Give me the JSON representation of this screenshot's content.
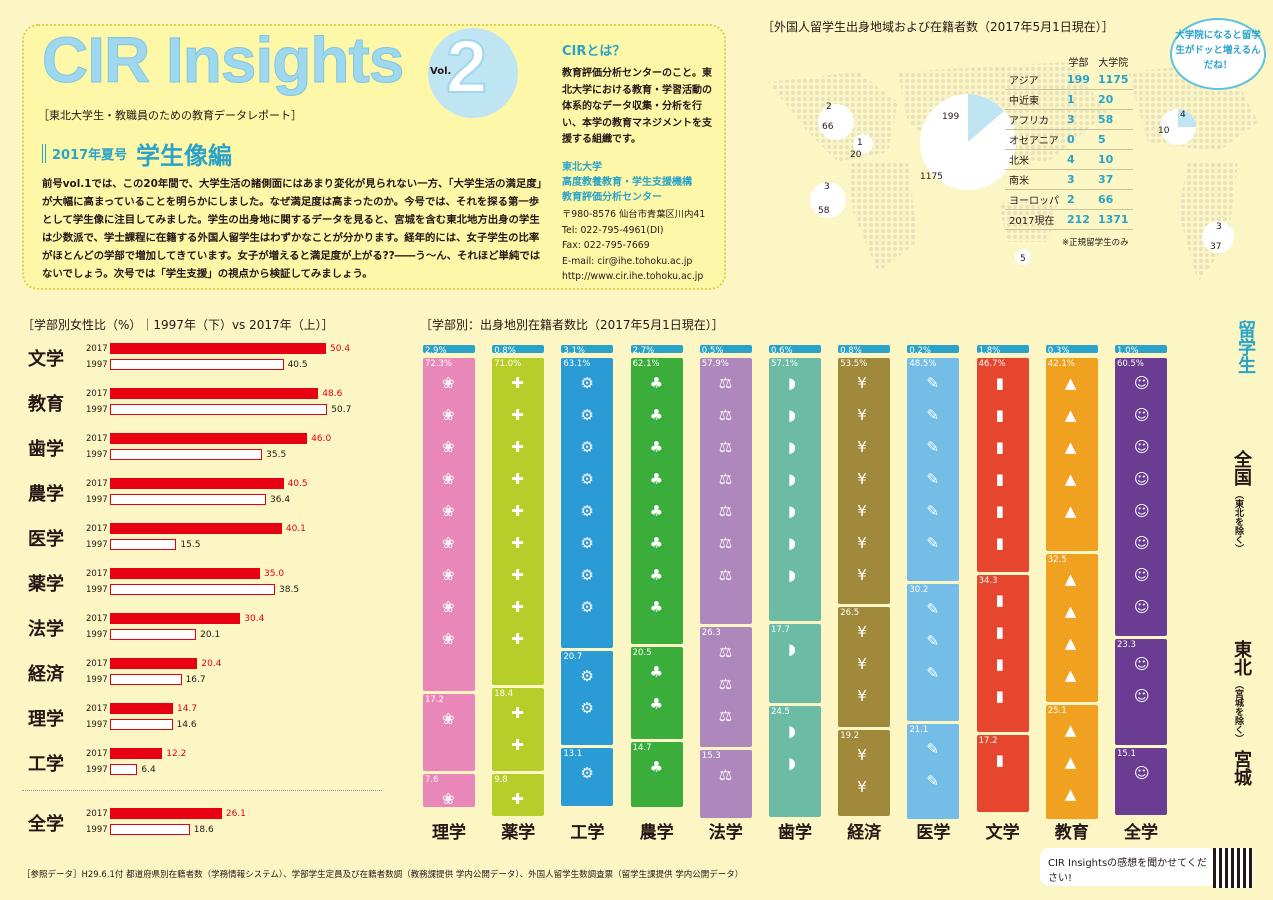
{
  "header": {
    "logo_text": "CIR Insights",
    "vol_label": "Vol.",
    "vol_number": "2",
    "subtitle": "［東北大学生・教職員のための教育データレポート］",
    "season": "2017年夏号",
    "season_title": "学生像編",
    "intro": "前号vol.1では、この20年間で、大学生活の諸側面にはあまり変化が見られない一方、「大学生活の満足度」が大幅に高まっていることを明らかにしました。なぜ満足度は高まったのか。今号では、それを探る第一歩として学生像に注目してみました。学生の出身地に関するデータを見ると、宮城を含む東北地方出身の学生は少数派で、学士課程に在籍する外国人留学生はわずかなことが分かります。経年的には、女子学生の比率がほとんどの学部で増加してきています。女子が増えると満足度が上がる??――う〜ん、それほど単純ではないでしょう。次号では「学生支援」の視点から検証してみましょう。"
  },
  "cir": {
    "title": "CIRとは？",
    "desc": "教育評価分析センターのこと。東北大学における教育・学習活動の体系的なデータ収集・分析を行い、本学の教育マネジメントを支援する組織です。",
    "org_line1": "東北大学",
    "org_line2": "高度教養教育・学生支援機構",
    "org_line3": "教育評価分析センター",
    "addr1": "〒980-8576 仙台市青葉区川内41",
    "addr2": "Tel: 022-795-4961(DI)",
    "addr3": "Fax: 022-795-7669",
    "addr4": "E-mail: cir@ihe.tohoku.ac.jp",
    "addr5": "http://www.cir.ihe.tohoku.ac.jp"
  },
  "map": {
    "title": "［外国人留学生出身地域および在籍者数（2017年5月1日現在）］",
    "bubble": "大学院になると留学生がドッと増えるんだね！",
    "col_gakubu": "学部",
    "col_daigakuin": "大学院",
    "rows": [
      {
        "region": "アジア",
        "gakubu": "199",
        "daigakuin": "1175"
      },
      {
        "region": "中近東",
        "gakubu": "1",
        "daigakuin": "20"
      },
      {
        "region": "アフリカ",
        "gakubu": "3",
        "daigakuin": "58"
      },
      {
        "region": "オセアニア",
        "gakubu": "0",
        "daigakuin": "5"
      },
      {
        "region": "北米",
        "gakubu": "4",
        "daigakuin": "10"
      },
      {
        "region": "南米",
        "gakubu": "3",
        "daigakuin": "37"
      },
      {
        "region": "ヨーロッパ",
        "gakubu": "2",
        "daigakuin": "66"
      },
      {
        "region": "2017現在",
        "gakubu": "212",
        "daigakuin": "1371"
      }
    ],
    "note": "※正規留学生のみ",
    "labels": {
      "eu_g": "2",
      "eu_d": "66",
      "me_g": "1",
      "me_d": "20",
      "af_g": "3",
      "af_d": "58",
      "as_g": "199",
      "as_d": "1175",
      "oc_d": "5",
      "na_g": "4",
      "na_d": "10",
      "sa_g": "3",
      "sa_d": "37"
    }
  },
  "left_chart": {
    "title": "［学部別女性比（%）｜1997年（下）vs 2017年（上）］",
    "y2017": "2017",
    "y1997": "1997"
  },
  "right_chart": {
    "title": "［学部別：出身地別在籍者数比（2017年5月1日現在）］",
    "ryugaku": "留学生",
    "zenkoku": "全国",
    "zenkoku_sub": "（東北を除く）",
    "tohoku": "東北",
    "tohoku_sub": "（宮城を除く）",
    "miyagi": "宮城"
  },
  "chart_data": [
    {
      "type": "bar",
      "title": "学部別女性比（%）｜1997年（下）vs 2017年（上）",
      "categories": [
        "文学",
        "教育",
        "歯学",
        "農学",
        "医学",
        "薬学",
        "法学",
        "経済",
        "理学",
        "工学",
        "全学"
      ],
      "series": [
        {
          "name": "2017",
          "values": [
            50.4,
            48.6,
            46.0,
            40.5,
            40.1,
            35.0,
            30.4,
            20.4,
            14.7,
            12.2,
            26.1
          ]
        },
        {
          "name": "1997",
          "values": [
            40.5,
            50.7,
            35.5,
            36.4,
            15.5,
            38.5,
            20.1,
            16.7,
            14.6,
            6.4,
            18.6
          ]
        }
      ],
      "xlim": [
        0,
        55
      ],
      "colors": {
        "2017": "#e60012",
        "1997": "#ffffff"
      }
    },
    {
      "type": "bar",
      "title": "学部別：出身地別在籍者数比（2017年5月1日現在）",
      "categories": [
        "理学",
        "薬学",
        "工学",
        "農学",
        "法学",
        "歯学",
        "経済",
        "医学",
        "文学",
        "教育",
        "全学"
      ],
      "series": [
        {
          "name": "留学生",
          "values": [
            2.9,
            0.8,
            3.1,
            2.7,
            0.5,
            0.6,
            0.8,
            0.2,
            1.8,
            0.3,
            1.0
          ]
        },
        {
          "name": "全国（東北を除く）",
          "values": [
            72.3,
            71.0,
            63.1,
            62.1,
            57.9,
            57.1,
            53.5,
            48.5,
            46.7,
            42.1,
            60.5
          ]
        },
        {
          "name": "東北（宮城を除く）",
          "values": [
            17.2,
            18.4,
            20.7,
            20.5,
            26.3,
            17.7,
            26.5,
            30.2,
            34.3,
            32.5,
            23.3
          ]
        },
        {
          "name": "宮城",
          "values": [
            7.6,
            9.8,
            13.1,
            14.7,
            15.3,
            24.5,
            19.2,
            21.1,
            17.2,
            25.1,
            15.1
          ]
        }
      ],
      "ylim": [
        0,
        100
      ],
      "colors": [
        "#e987b8",
        "#b6cd2a",
        "#2a9bd5",
        "#3aad3b",
        "#ae88bd",
        "#6cbba4",
        "#a0893a",
        "#73bde6",
        "#e5462d",
        "#efa11f",
        "#6a3c92"
      ],
      "accent": "#2ba3c9"
    }
  ],
  "footer": {
    "ref": "［参照データ］H29.6.1付 都道府県別在籍者数（学務情報システム）、学部学生定員及び在籍者数調（教務課提供 学内公開データ）、外国人留学生数調査票（留学生課提供 学内公開データ）",
    "survey": "CIR Insightsの感想を聞かせてください!"
  }
}
